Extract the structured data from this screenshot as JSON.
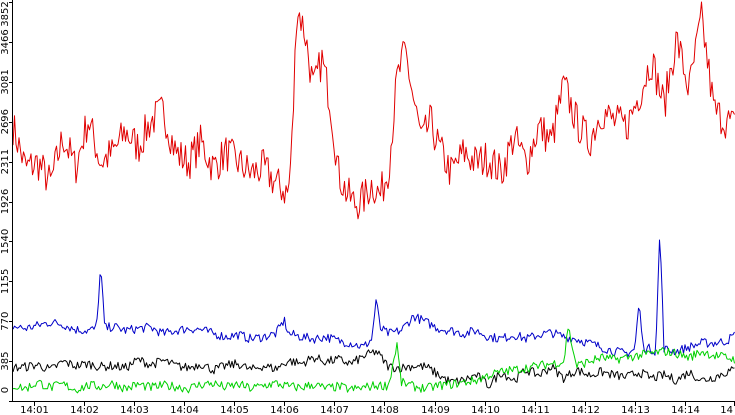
{
  "chart_data": {
    "type": "line",
    "title": "",
    "xlabel": "",
    "ylabel": "",
    "grid": false,
    "legend": "none",
    "ylim": [
      0,
      3852
    ],
    "y_ticks": [
      "0",
      "385",
      "770",
      "1155",
      "1540",
      "1926",
      "2311",
      "2696",
      "3081",
      "3466",
      "3852"
    ],
    "x_ticks": [
      "14:01",
      "14:02",
      "14:03",
      "14:04",
      "14:05",
      "14:06",
      "14:07",
      "14:08",
      "14:09",
      "14:10",
      "14:11",
      "14:12",
      "14:13",
      "14:14",
      "14"
    ],
    "xlim": [
      "14:00:35",
      "14:15:00"
    ],
    "series": [
      {
        "color": "#e00000",
        "x": [
          "14:00:35",
          "14:00:50",
          "14:01:05",
          "14:01:20",
          "14:01:35",
          "14:01:50",
          "14:02:05",
          "14:02:20",
          "14:02:35",
          "14:02:50",
          "14:03:05",
          "14:03:20",
          "14:03:35",
          "14:03:50",
          "14:04:05",
          "14:04:20",
          "14:04:35",
          "14:04:50",
          "14:05:05",
          "14:05:20",
          "14:05:35",
          "14:05:50",
          "14:06:05",
          "14:06:10",
          "14:06:15",
          "14:06:25",
          "14:06:35",
          "14:06:45",
          "14:06:55",
          "14:07:05",
          "14:07:15",
          "14:07:25",
          "14:07:35",
          "14:07:45",
          "14:07:55",
          "14:08:05",
          "14:08:15",
          "14:08:25",
          "14:08:35",
          "14:08:45",
          "14:08:55",
          "14:09:05",
          "14:09:20",
          "14:09:35",
          "14:09:50",
          "14:10:05",
          "14:10:20",
          "14:10:35",
          "14:10:50",
          "14:11:05",
          "14:11:20",
          "14:11:35",
          "14:11:50",
          "14:12:05",
          "14:12:20",
          "14:12:35",
          "14:12:50",
          "14:13:05",
          "14:13:20",
          "14:13:35",
          "14:13:50",
          "14:14:05",
          "14:14:20",
          "14:14:35",
          "14:14:50",
          "14:15:00"
        ],
        "values": [
          2650,
          2250,
          2300,
          2100,
          2550,
          2250,
          2720,
          2300,
          2400,
          2600,
          2450,
          2700,
          2800,
          2400,
          2300,
          2500,
          2250,
          2400,
          2300,
          2200,
          2250,
          2100,
          2000,
          2600,
          3820,
          3550,
          3000,
          3300,
          2900,
          2200,
          2000,
          1900,
          1950,
          2100,
          1980,
          2250,
          3100,
          3380,
          2900,
          2500,
          2700,
          2450,
          2200,
          2400,
          2300,
          2350,
          2200,
          2550,
          2300,
          2650,
          2500,
          3050,
          2700,
          2500,
          2800,
          2700,
          2650,
          2950,
          3300,
          2850,
          3500,
          3000,
          3700,
          2800,
          2700,
          2650
        ]
      },
      {
        "color": "#0000c8",
        "x": [
          "14:00:35",
          "14:00:50",
          "14:01:05",
          "14:01:20",
          "14:01:35",
          "14:01:50",
          "14:02:05",
          "14:02:15",
          "14:02:20",
          "14:02:25",
          "14:02:35",
          "14:02:50",
          "14:03:05",
          "14:03:20",
          "14:03:35",
          "14:03:50",
          "14:04:05",
          "14:04:20",
          "14:04:35",
          "14:04:50",
          "14:05:05",
          "14:05:20",
          "14:05:35",
          "14:05:50",
          "14:06:00",
          "14:06:05",
          "14:06:20",
          "14:06:35",
          "14:06:50",
          "14:07:05",
          "14:07:20",
          "14:07:35",
          "14:07:45",
          "14:07:50",
          "14:07:55",
          "14:08:05",
          "14:08:20",
          "14:08:35",
          "14:08:50",
          "14:09:05",
          "14:09:20",
          "14:09:35",
          "14:09:50",
          "14:10:05",
          "14:10:20",
          "14:10:35",
          "14:10:50",
          "14:11:05",
          "14:11:20",
          "14:11:35",
          "14:11:50",
          "14:12:05",
          "14:12:20",
          "14:12:35",
          "14:12:50",
          "14:13:00",
          "14:13:05",
          "14:13:10",
          "14:13:20",
          "14:13:25",
          "14:13:30",
          "14:13:35",
          "14:13:50",
          "14:14:05",
          "14:14:20",
          "14:14:35",
          "14:14:50",
          "14:15:00"
        ],
        "values": [
          720,
          700,
          730,
          760,
          740,
          690,
          680,
          700,
          1300,
          700,
          720,
          680,
          700,
          710,
          650,
          680,
          700,
          690,
          650,
          620,
          640,
          600,
          620,
          650,
          780,
          650,
          620,
          600,
          620,
          580,
          560,
          520,
          600,
          980,
          700,
          650,
          680,
          820,
          760,
          700,
          680,
          650,
          680,
          620,
          600,
          640,
          600,
          640,
          660,
          620,
          600,
          560,
          520,
          480,
          460,
          500,
          950,
          520,
          500,
          480,
          1650,
          500,
          480,
          520,
          560,
          560,
          580,
          640
        ]
      },
      {
        "color": "#000000",
        "x": [
          "14:00:35",
          "14:00:50",
          "14:01:05",
          "14:01:20",
          "14:01:35",
          "14:01:50",
          "14:02:05",
          "14:02:20",
          "14:02:35",
          "14:02:50",
          "14:03:05",
          "14:03:20",
          "14:03:35",
          "14:03:50",
          "14:04:05",
          "14:04:20",
          "14:04:35",
          "14:04:50",
          "14:05:05",
          "14:05:20",
          "14:05:35",
          "14:05:50",
          "14:06:05",
          "14:06:20",
          "14:06:35",
          "14:06:50",
          "14:07:05",
          "14:07:20",
          "14:07:35",
          "14:07:50",
          "14:08:05",
          "14:08:20",
          "14:08:35",
          "14:08:50",
          "14:09:05",
          "14:09:20",
          "14:09:35",
          "14:09:50",
          "14:10:05",
          "14:10:20",
          "14:10:35",
          "14:10:50",
          "14:11:05",
          "14:11:20",
          "14:11:35",
          "14:11:50",
          "14:12:05",
          "14:12:20",
          "14:12:35",
          "14:12:50",
          "14:13:05",
          "14:13:20",
          "14:13:35",
          "14:13:50",
          "14:14:05",
          "14:14:20",
          "14:14:35",
          "14:14:50",
          "14:15:00"
        ],
        "values": [
          320,
          330,
          350,
          300,
          380,
          340,
          360,
          330,
          340,
          320,
          400,
          350,
          390,
          340,
          320,
          360,
          300,
          340,
          360,
          300,
          340,
          310,
          390,
          360,
          420,
          380,
          400,
          360,
          430,
          480,
          330,
          320,
          340,
          330,
          250,
          180,
          200,
          250,
          150,
          280,
          200,
          300,
          250,
          330,
          220,
          300,
          250,
          280,
          250,
          230,
          280,
          220,
          250,
          200,
          280,
          200,
          230,
          280,
          300
        ]
      },
      {
        "color": "#00d000",
        "x": [
          "14:00:35",
          "14:00:50",
          "14:01:05",
          "14:01:20",
          "14:01:35",
          "14:01:50",
          "14:02:05",
          "14:02:20",
          "14:02:35",
          "14:02:50",
          "14:03:05",
          "14:03:20",
          "14:03:35",
          "14:03:50",
          "14:04:05",
          "14:04:20",
          "14:04:35",
          "14:04:50",
          "14:05:05",
          "14:05:20",
          "14:05:35",
          "14:05:50",
          "14:06:05",
          "14:06:20",
          "14:06:35",
          "14:06:50",
          "14:07:05",
          "14:07:20",
          "14:07:35",
          "14:07:50",
          "14:08:05",
          "14:08:15",
          "14:08:20",
          "14:08:35",
          "14:08:50",
          "14:09:05",
          "14:09:20",
          "14:09:35",
          "14:09:50",
          "14:10:05",
          "14:10:20",
          "14:10:35",
          "14:10:50",
          "14:11:05",
          "14:11:20",
          "14:11:35",
          "14:11:40",
          "14:11:50",
          "14:12:05",
          "14:12:20",
          "14:12:35",
          "14:12:50",
          "14:13:05",
          "14:13:20",
          "14:13:35",
          "14:13:50",
          "14:14:05",
          "14:14:20",
          "14:14:35",
          "14:14:50",
          "14:15:00"
        ],
        "values": [
          150,
          120,
          180,
          130,
          160,
          110,
          150,
          140,
          170,
          120,
          160,
          130,
          150,
          140,
          120,
          160,
          170,
          130,
          160,
          120,
          150,
          170,
          140,
          130,
          160,
          120,
          140,
          110,
          130,
          150,
          150,
          550,
          180,
          140,
          120,
          150,
          160,
          180,
          200,
          250,
          280,
          300,
          320,
          340,
          360,
          380,
          720,
          340,
          380,
          420,
          400,
          420,
          440,
          460,
          480,
          460,
          420,
          480,
          440,
          420,
          400
        ]
      }
    ]
  }
}
